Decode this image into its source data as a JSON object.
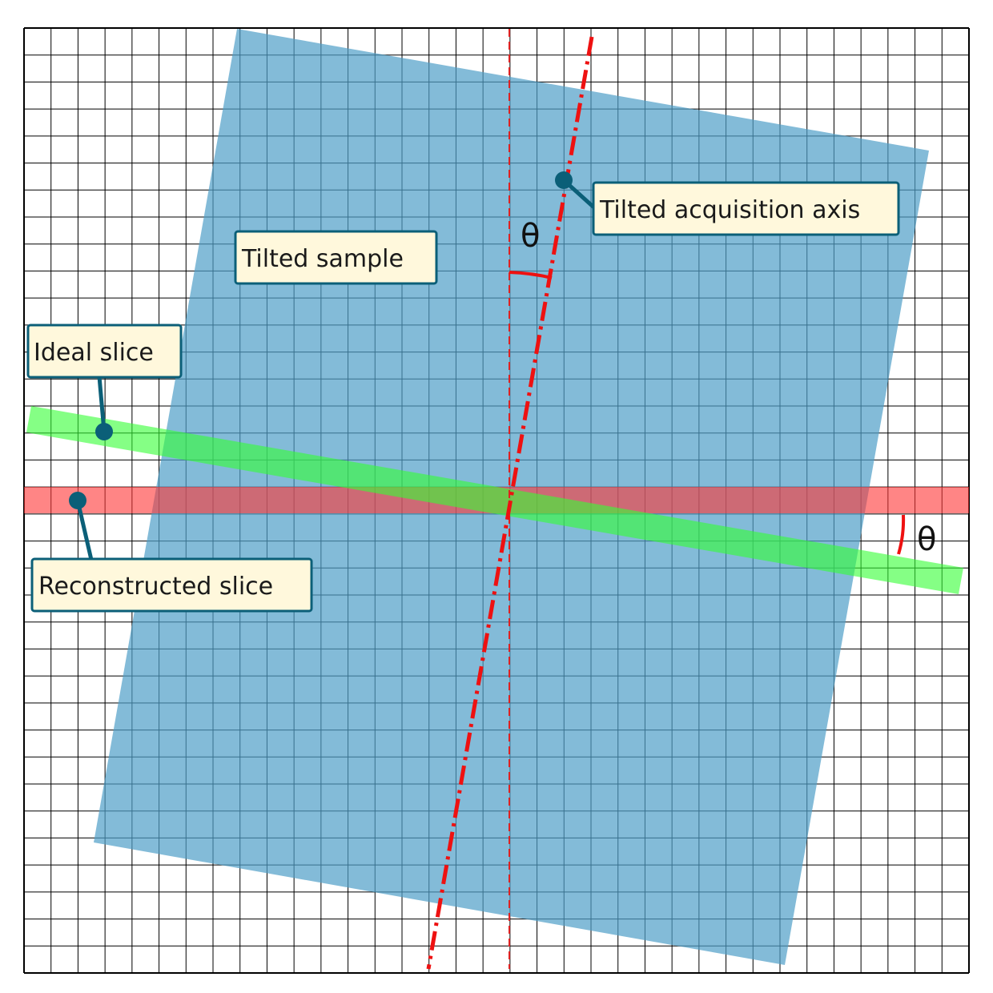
{
  "colors": {
    "grid_line": "#000000",
    "sample_fill": "#4f9ec8",
    "ideal_slice_fill": "#33ff33",
    "reconstructed_slice_fill": "#ff3333",
    "axis_red": "#ee1111",
    "callout_fill": "#fff8dc",
    "callout_stroke": "#0b5f78",
    "leader_color": "#0b5f78"
  },
  "labels": {
    "tilted_sample": "Tilted sample",
    "tilted_acquisition_axis": "Tilted acquisition axis",
    "ideal_slice": "Ideal slice",
    "reconstructed_slice": "Reconstructed slice",
    "theta_top": "θ",
    "theta_right": "θ"
  }
}
